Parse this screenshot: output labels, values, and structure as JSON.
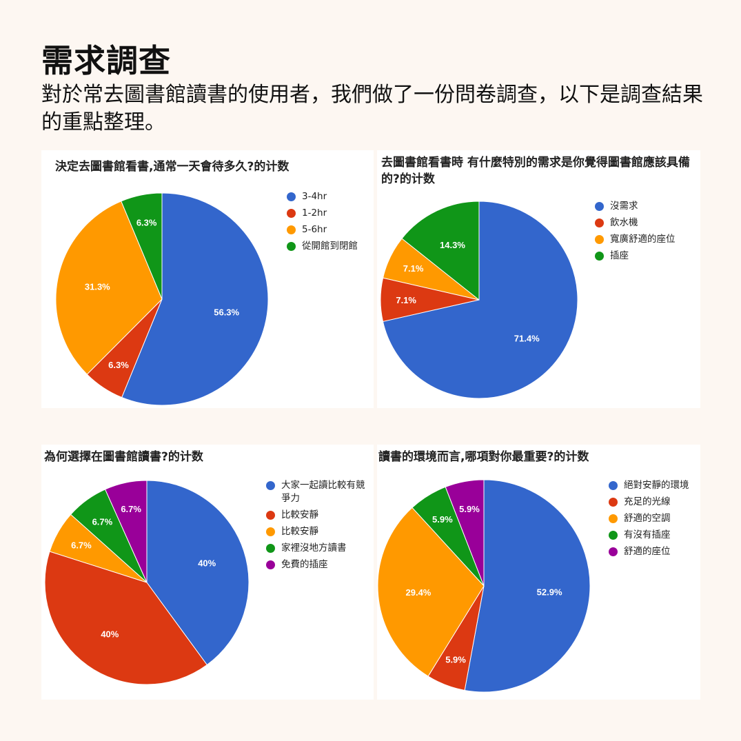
{
  "title": "需求調查",
  "intro": "對於常去圖書館讀書的使用者，我們做了一份問卷調查，以下是調查結果的重點整理。",
  "colors": {
    "blue": "#3366cc",
    "red": "#dc3912",
    "orange": "#ff9900",
    "green": "#109618",
    "purple": "#990099"
  },
  "chart_data": [
    {
      "type": "pie",
      "title": "決定去圖書館看書,通常一天會待多久?的计数",
      "categories": [
        "3-4hr",
        "1-2hr",
        "5-6hr",
        "從開館到閉館"
      ],
      "values": [
        56.3,
        6.3,
        31.3,
        6.3
      ],
      "labels": [
        "56.3%",
        "6.3%",
        "31.3%",
        "6.3%"
      ],
      "colors": [
        "#3366cc",
        "#dc3912",
        "#ff9900",
        "#109618"
      ],
      "legend_position": "right"
    },
    {
      "type": "pie",
      "title": "去圖書館看書時 有什麼特別的需求是你覺得圖書館應該具備的?的计数",
      "categories": [
        "沒需求",
        "飲水機",
        "寬廣舒適的座位",
        "插座"
      ],
      "values": [
        71.4,
        7.1,
        7.1,
        14.3
      ],
      "labels": [
        "71.4%",
        "7.1%",
        "7.1%",
        "14.3%"
      ],
      "colors": [
        "#3366cc",
        "#dc3912",
        "#ff9900",
        "#109618"
      ],
      "legend_position": "right"
    },
    {
      "type": "pie",
      "title": "為何選擇在圖書館讀書?的计数",
      "categories": [
        "大家一起讀比較有競爭力",
        "比較安靜",
        "比較安靜",
        "家裡沒地方讀書",
        "免費的插座"
      ],
      "values": [
        40,
        40,
        6.7,
        6.7,
        6.7
      ],
      "labels": [
        "40%",
        "40%",
        "6.7%",
        "6.7%",
        "6.7%"
      ],
      "colors": [
        "#3366cc",
        "#dc3912",
        "#ff9900",
        "#109618",
        "#990099"
      ],
      "legend_position": "right"
    },
    {
      "type": "pie",
      "title": "讀書的環境而言,哪項對你最重要?的计数",
      "categories": [
        "絕對安靜的環境",
        "充足的光線",
        "舒適的空調",
        "有沒有插座",
        "舒適的座位"
      ],
      "values": [
        52.9,
        5.9,
        29.4,
        5.9,
        5.9
      ],
      "labels": [
        "52.9%",
        "5.9%",
        "29.4%",
        "5.9%",
        "5.9%"
      ],
      "colors": [
        "#3366cc",
        "#dc3912",
        "#ff9900",
        "#109618",
        "#990099"
      ],
      "legend_position": "right"
    }
  ]
}
